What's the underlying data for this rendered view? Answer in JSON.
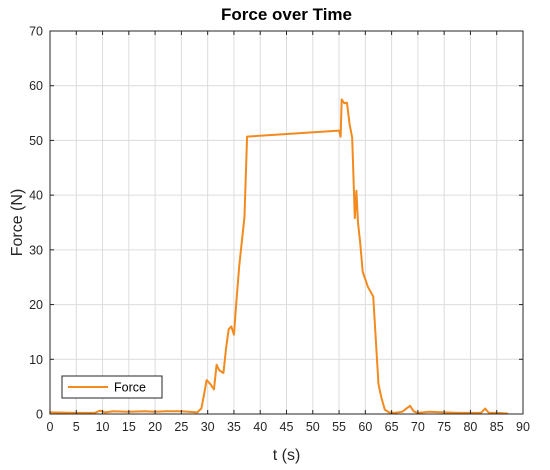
{
  "chart_data": {
    "type": "line",
    "title": "Force over Time",
    "xlabel": "t (s)",
    "ylabel": "Force (N)",
    "xlim": [
      0,
      90
    ],
    "ylim": [
      0,
      70
    ],
    "xticks": [
      0,
      5,
      10,
      15,
      20,
      25,
      30,
      35,
      40,
      45,
      50,
      55,
      60,
      65,
      70,
      75,
      80,
      85,
      90
    ],
    "yticks": [
      0,
      10,
      20,
      30,
      40,
      50,
      60,
      70
    ],
    "grid": true,
    "legend_position": "bottom-left",
    "series": [
      {
        "name": "Force",
        "color": "#F28A1E",
        "x": [
          0,
          5,
          8.5,
          9.5,
          10.5,
          12,
          15,
          18,
          20,
          22,
          25,
          28,
          28.8,
          29.3,
          29.8,
          30.5,
          31.2,
          31.7,
          32.2,
          33,
          33.5,
          34,
          34.5,
          35,
          35.5,
          36,
          37,
          37.5,
          55,
          55.3,
          55.5,
          56,
          56.5,
          57,
          57.5,
          58,
          58.3,
          58.6,
          59,
          59.5,
          60.5,
          61.5,
          62.5,
          63,
          63.7,
          64.5,
          65.5,
          67,
          68.5,
          69.2,
          70,
          72,
          75,
          78,
          80,
          82,
          82.8,
          83.5,
          85,
          87
        ],
        "y": [
          0.3,
          0.2,
          0.2,
          0.6,
          0.3,
          0.5,
          0.4,
          0.5,
          0.4,
          0.5,
          0.5,
          0.3,
          1,
          3.5,
          6.2,
          5.5,
          4.5,
          9,
          8,
          7.5,
          12,
          15.5,
          16,
          14.5,
          21,
          27,
          36,
          50.7,
          51.8,
          50.7,
          57.5,
          56.8,
          56.9,
          53,
          50.5,
          35.8,
          40.8,
          35,
          31.5,
          26,
          23.2,
          21.5,
          5.5,
          3.2,
          0.8,
          0.3,
          0.2,
          0.4,
          1.5,
          0.5,
          0.2,
          0.4,
          0.3,
          0.2,
          0.2,
          0.2,
          1,
          0.2,
          0.2,
          0.1
        ]
      }
    ]
  }
}
